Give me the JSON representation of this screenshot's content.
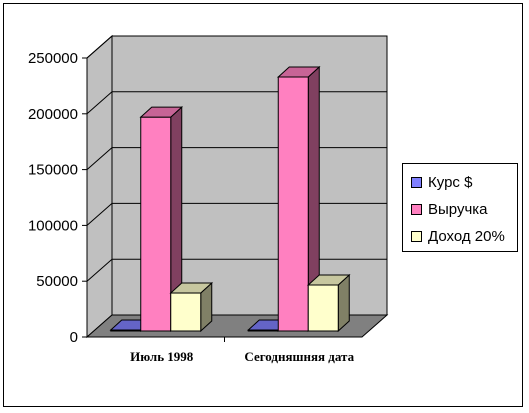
{
  "chart_data": {
    "type": "bar",
    "title": "",
    "xlabel": "",
    "ylabel": "",
    "categories": [
      "Июль 1998",
      "Сегодняшняя дата"
    ],
    "series": [
      {
        "name": "Курс $",
        "values": [
          6,
          25
        ],
        "color": "#8080ff"
      },
      {
        "name": "Выручка",
        "values": [
          197000,
          233000
        ],
        "color": "#ff80c0"
      },
      {
        "name": "Доход 20%",
        "values": [
          39400,
          46600
        ],
        "color": "#ffffcc"
      }
    ],
    "ylim": [
      0,
      250000
    ],
    "yticks": [
      "0",
      "50000",
      "100000",
      "150000",
      "200000",
      "250000"
    ],
    "grid": true,
    "legend_position": "right",
    "three_d": true,
    "wall_color": "#c0c0c0",
    "floor_color": "#808080"
  }
}
